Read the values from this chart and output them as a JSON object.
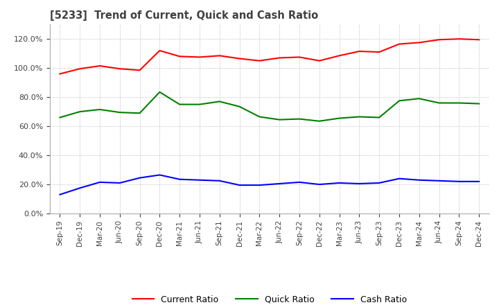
{
  "title": "[5233]  Trend of Current, Quick and Cash Ratio",
  "x_labels": [
    "Sep-19",
    "Dec-19",
    "Mar-20",
    "Jun-20",
    "Sep-20",
    "Dec-20",
    "Mar-21",
    "Jun-21",
    "Sep-21",
    "Dec-21",
    "Mar-22",
    "Jun-22",
    "Sep-22",
    "Dec-22",
    "Mar-23",
    "Jun-23",
    "Sep-23",
    "Dec-23",
    "Mar-24",
    "Jun-24",
    "Sep-24",
    "Dec-24"
  ],
  "current_ratio": [
    96.0,
    99.5,
    101.5,
    99.5,
    98.5,
    112.0,
    108.0,
    107.5,
    108.5,
    106.5,
    105.0,
    107.0,
    107.5,
    105.0,
    108.5,
    111.5,
    111.0,
    116.5,
    117.5,
    119.5,
    120.0,
    119.5
  ],
  "quick_ratio": [
    66.0,
    70.0,
    71.5,
    69.5,
    69.0,
    83.5,
    75.0,
    75.0,
    77.0,
    73.5,
    66.5,
    64.5,
    65.0,
    63.5,
    65.5,
    66.5,
    66.0,
    77.5,
    79.0,
    76.0,
    76.0,
    75.5
  ],
  "cash_ratio": [
    13.0,
    17.5,
    21.5,
    21.0,
    24.5,
    26.5,
    23.5,
    23.0,
    22.5,
    19.5,
    19.5,
    20.5,
    21.5,
    20.0,
    21.0,
    20.5,
    21.0,
    24.0,
    23.0,
    22.5,
    22.0,
    22.0
  ],
  "current_color": "#ff0000",
  "quick_color": "#008000",
  "cash_color": "#0000ff",
  "background_color": "#ffffff",
  "grid_color": "#aaaaaa",
  "title_color": "#404040",
  "yticks": [
    0.0,
    20.0,
    40.0,
    60.0,
    80.0,
    100.0,
    120.0
  ],
  "ylim_min": 0.0,
  "ylim_max": 130.0
}
